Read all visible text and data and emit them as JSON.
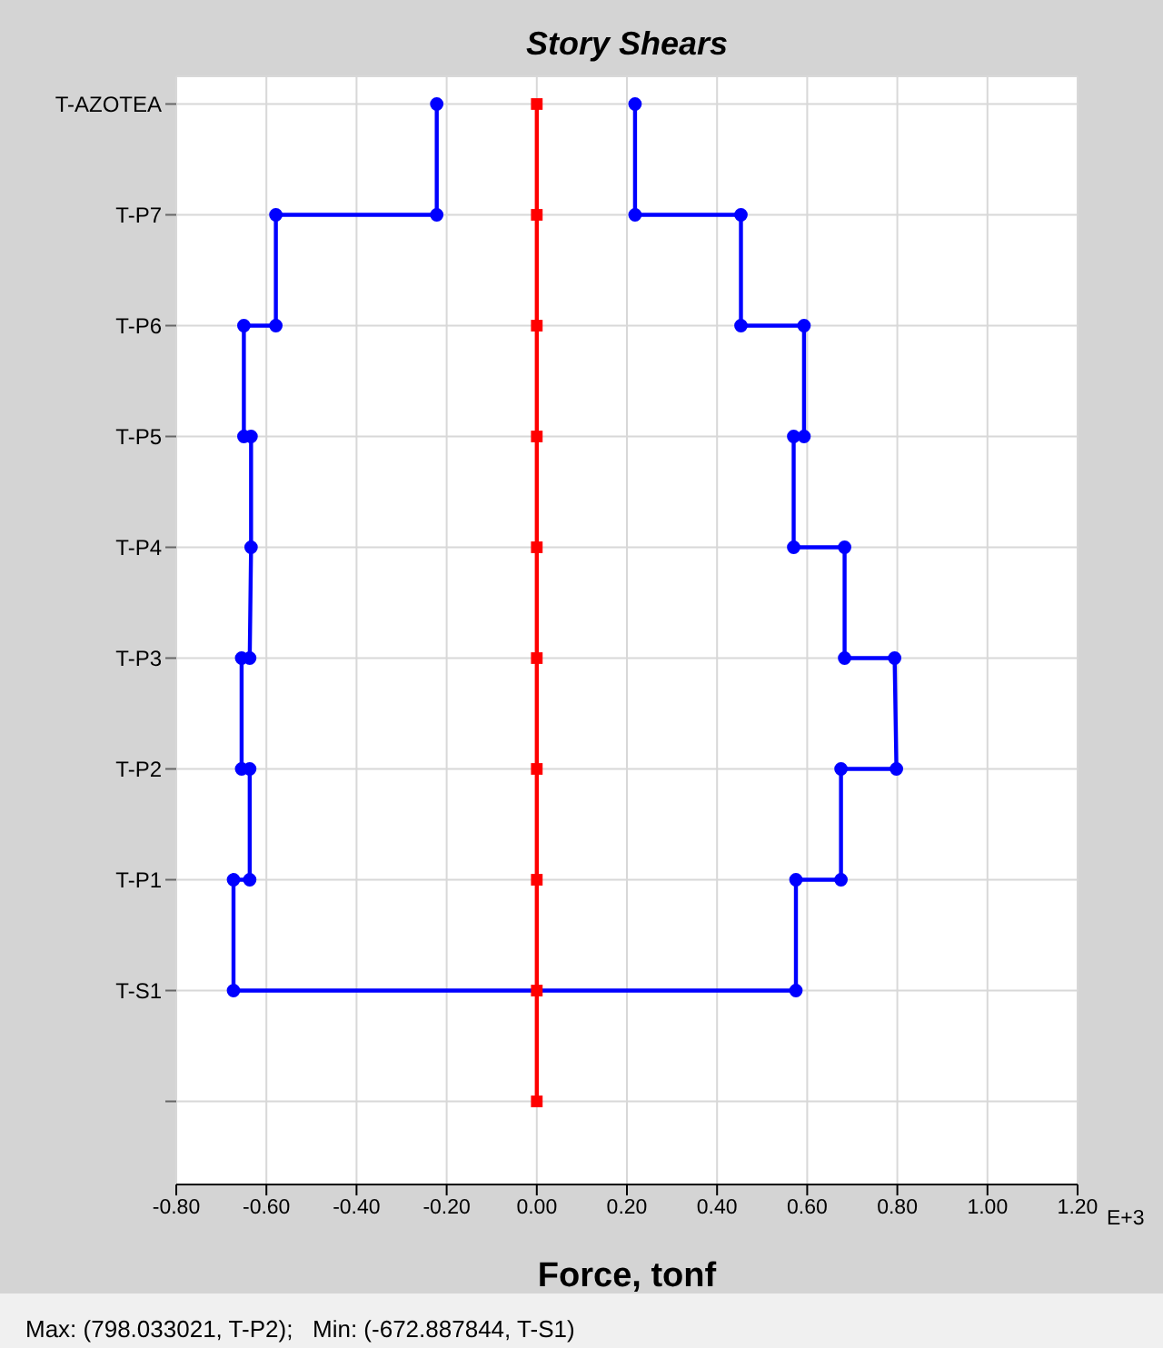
{
  "chart_data": {
    "type": "line",
    "title": "Story Shears",
    "xlabel": "Force, tonf",
    "annotations": [
      "E+3",
      "Max: (798.033021, T-P2);   Min: (-672.887844, T-S1)"
    ],
    "orientation": "horizontal",
    "categories": [
      "T-AZOTEA",
      "T-P7",
      "T-P6",
      "T-P5",
      "T-P4",
      "T-P3",
      "T-P2",
      "T-P1",
      "T-S1",
      null
    ],
    "xlim": [
      -0.8,
      1.2
    ],
    "xticks": [
      {
        "value": -0.8,
        "label": "-0.80"
      },
      {
        "value": -0.6,
        "label": "-0.60"
      },
      {
        "value": -0.4,
        "label": "-0.40"
      },
      {
        "value": -0.2,
        "label": "-0.20"
      },
      {
        "value": 0,
        "label": "0.00"
      },
      {
        "value": 0.2,
        "label": "0.20"
      },
      {
        "value": 0.4,
        "label": "0.40"
      },
      {
        "value": 0.6,
        "label": "0.60"
      },
      {
        "value": 0.8,
        "label": "0.80"
      },
      {
        "value": 1,
        "label": "1.00"
      },
      {
        "value": 1.2,
        "label": "1.20"
      }
    ],
    "grid": true,
    "line_style": "solid",
    "series": [
      {
        "color": "#0000ff",
        "marker": "circle",
        "x": [
          "T-AZOTEA",
          "T-P7",
          "T-P7",
          "T-P6",
          "T-P6",
          "T-P5",
          "T-P5",
          "T-P4",
          "T-P3",
          "T-P3",
          "T-P2",
          "T-P2",
          "T-P1",
          "T-P1",
          "T-S1",
          "T-S1",
          "T-P1",
          "T-P1",
          "T-P2",
          "T-P2",
          "T-P3",
          "T-P3",
          "T-P4",
          "T-P4",
          "T-P5",
          "T-P5",
          "T-P6",
          "T-P6",
          "T-P7",
          "T-P7",
          "T-AZOTEA"
        ],
        "values": [
          -0.222,
          -0.222,
          -0.579,
          -0.579,
          -0.65,
          -0.65,
          -0.634,
          -0.634,
          -0.637,
          -0.655,
          -0.655,
          -0.637,
          -0.637,
          -0.673,
          -0.673,
          0.575,
          0.575,
          0.675,
          0.675,
          0.798,
          0.794,
          0.683,
          0.683,
          0.57,
          0.57,
          0.593,
          0.593,
          0.453,
          0.453,
          0.218,
          0.218
        ]
      },
      {
        "color": "#ff0000",
        "marker": "square",
        "values": [
          0,
          0,
          0,
          0,
          0,
          0,
          0,
          0,
          0,
          0
        ]
      }
    ]
  }
}
